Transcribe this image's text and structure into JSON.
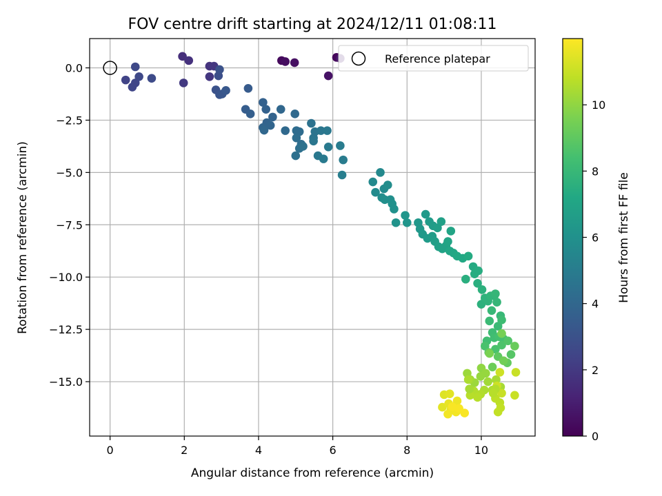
{
  "chart_data": {
    "type": "scatter",
    "title": "FOV centre drift starting at 2024/12/11 01:08:11",
    "xlabel": "Angular distance from reference (arcmin)",
    "ylabel": "Rotation from reference (arcmin)",
    "xlim": [
      -0.55,
      11.45
    ],
    "ylim": [
      -17.6,
      1.4
    ],
    "xticks": [
      "0",
      "2",
      "4",
      "6",
      "8",
      "10"
    ],
    "xtick_values": [
      0,
      2,
      4,
      6,
      8,
      10
    ],
    "yticks": [
      "0.0",
      "−2.5",
      "−5.0",
      "−7.5",
      "−10.0",
      "−12.5",
      "−15.0"
    ],
    "ytick_values": [
      0,
      -2.5,
      -5,
      -7.5,
      -10,
      -12.5,
      -15
    ],
    "grid": true,
    "legend": {
      "label": "Reference platepar",
      "placement": "top-right"
    },
    "reference_point": {
      "x": 0,
      "y": 0
    },
    "colorbar": {
      "label": "Hours from first FF file",
      "colormap": "viridis",
      "range": [
        0,
        12
      ],
      "ticks": [
        "0",
        "2",
        "4",
        "6",
        "8",
        "10"
      ],
      "tick_values": [
        0,
        2,
        4,
        6,
        8,
        10
      ]
    },
    "points": [
      [
        4.62,
        0.35,
        0.3
      ],
      [
        4.72,
        0.3,
        0.4
      ],
      [
        4.97,
        0.25,
        0.5
      ],
      [
        5.88,
        -0.38,
        0.6
      ],
      [
        6.1,
        0.5,
        0.2
      ],
      [
        6.2,
        0.45,
        0.8
      ],
      [
        1.95,
        0.55,
        1.6
      ],
      [
        2.12,
        0.35,
        1.7
      ],
      [
        2.68,
        0.08,
        1.8
      ],
      [
        2.8,
        0.08,
        1.9
      ],
      [
        2.68,
        -0.42,
        1.9
      ],
      [
        1.98,
        -0.72,
        2.0
      ],
      [
        0.42,
        -0.58,
        2.4
      ],
      [
        0.6,
        -0.92,
        2.5
      ],
      [
        0.68,
        -0.72,
        2.5
      ],
      [
        0.68,
        0.05,
        2.6
      ],
      [
        0.78,
        -0.42,
        2.6
      ],
      [
        1.12,
        -0.5,
        2.7
      ],
      [
        2.92,
        -0.38,
        2.9
      ],
      [
        2.95,
        -0.08,
        3.0
      ],
      [
        2.85,
        -1.05,
        3.0
      ],
      [
        2.95,
        -1.28,
        3.1
      ],
      [
        3.02,
        -1.25,
        3.2
      ],
      [
        3.12,
        -1.08,
        3.3
      ],
      [
        3.72,
        -0.98,
        3.4
      ],
      [
        3.65,
        -1.98,
        3.5
      ],
      [
        3.78,
        -2.2,
        3.6
      ],
      [
        4.12,
        -1.65,
        3.7
      ],
      [
        4.2,
        -1.98,
        3.7
      ],
      [
        4.38,
        -2.35,
        3.8
      ],
      [
        4.22,
        -2.62,
        3.8
      ],
      [
        4.12,
        -2.85,
        3.9
      ],
      [
        4.32,
        -2.75,
        3.9
      ],
      [
        4.15,
        -2.98,
        4.0
      ],
      [
        4.6,
        -1.98,
        4.0
      ],
      [
        4.98,
        -2.2,
        4.1
      ],
      [
        4.72,
        -3.0,
        4.1
      ],
      [
        5.02,
        -3.0,
        4.2
      ],
      [
        5.1,
        -3.05,
        4.2
      ],
      [
        5.02,
        -3.35,
        4.3
      ],
      [
        5.15,
        -3.65,
        4.3
      ],
      [
        5.0,
        -4.2,
        4.4
      ],
      [
        5.1,
        -3.85,
        4.4
      ],
      [
        5.2,
        -3.75,
        4.5
      ],
      [
        5.42,
        -2.65,
        4.5
      ],
      [
        5.52,
        -3.05,
        4.6
      ],
      [
        5.48,
        -3.35,
        4.6
      ],
      [
        5.48,
        -3.5,
        4.7
      ],
      [
        5.68,
        -3.0,
        4.7
      ],
      [
        5.85,
        -3.0,
        4.8
      ],
      [
        5.6,
        -4.2,
        4.8
      ],
      [
        5.75,
        -4.35,
        4.9
      ],
      [
        5.88,
        -3.78,
        4.9
      ],
      [
        6.2,
        -3.72,
        5.0
      ],
      [
        6.28,
        -4.4,
        5.0
      ],
      [
        6.25,
        -5.12,
        5.1
      ],
      [
        7.28,
        -5.0,
        5.6
      ],
      [
        7.08,
        -5.45,
        5.6
      ],
      [
        7.15,
        -5.95,
        5.7
      ],
      [
        7.38,
        -5.78,
        5.7
      ],
      [
        7.48,
        -5.6,
        5.8
      ],
      [
        7.32,
        -6.2,
        5.8
      ],
      [
        7.4,
        -6.3,
        5.9
      ],
      [
        7.55,
        -6.3,
        5.9
      ],
      [
        7.6,
        -6.5,
        6.0
      ],
      [
        7.65,
        -6.75,
        6.0
      ],
      [
        7.7,
        -7.4,
        6.1
      ],
      [
        7.95,
        -7.05,
        6.2
      ],
      [
        8.0,
        -7.4,
        6.2
      ],
      [
        8.3,
        -7.4,
        6.3
      ],
      [
        8.35,
        -7.7,
        6.3
      ],
      [
        8.42,
        -7.95,
        6.4
      ],
      [
        8.5,
        -7.0,
        6.4
      ],
      [
        8.6,
        -7.35,
        6.5
      ],
      [
        8.55,
        -8.15,
        6.5
      ],
      [
        8.7,
        -7.55,
        6.6
      ],
      [
        8.68,
        -8.05,
        6.6
      ],
      [
        8.75,
        -8.3,
        6.7
      ],
      [
        8.82,
        -7.65,
        6.7
      ],
      [
        8.92,
        -7.35,
        6.8
      ],
      [
        8.85,
        -8.55,
        6.8
      ],
      [
        8.95,
        -8.65,
        6.9
      ],
      [
        9.05,
        -8.5,
        6.9
      ],
      [
        9.1,
        -8.3,
        7.0
      ],
      [
        9.18,
        -7.8,
        7.0
      ],
      [
        9.15,
        -8.75,
        7.1
      ],
      [
        9.25,
        -8.85,
        7.1
      ],
      [
        9.35,
        -9.0,
        7.2
      ],
      [
        9.5,
        -9.1,
        7.2
      ],
      [
        9.65,
        -9.0,
        7.3
      ],
      [
        9.78,
        -9.5,
        7.3
      ],
      [
        9.82,
        -9.85,
        7.4
      ],
      [
        9.92,
        -9.7,
        7.4
      ],
      [
        9.58,
        -10.1,
        7.5
      ],
      [
        9.9,
        -10.3,
        7.5
      ],
      [
        10.02,
        -10.6,
        7.6
      ],
      [
        10.0,
        -11.3,
        7.6
      ],
      [
        10.1,
        -11.0,
        7.7
      ],
      [
        10.18,
        -11.15,
        7.7
      ],
      [
        10.25,
        -10.9,
        7.8
      ],
      [
        10.35,
        -10.9,
        7.8
      ],
      [
        10.42,
        -11.2,
        7.9
      ],
      [
        10.38,
        -10.8,
        7.9
      ],
      [
        10.28,
        -11.6,
        8.0
      ],
      [
        10.52,
        -11.85,
        8.0
      ],
      [
        10.22,
        -12.1,
        8.1
      ],
      [
        10.45,
        -12.35,
        8.1
      ],
      [
        10.3,
        -12.65,
        8.2
      ],
      [
        10.55,
        -12.05,
        8.2
      ],
      [
        10.35,
        -12.9,
        8.3
      ],
      [
        10.15,
        -13.05,
        8.3
      ],
      [
        10.48,
        -12.85,
        8.4
      ],
      [
        10.6,
        -12.95,
        8.4
      ],
      [
        10.1,
        -13.3,
        8.5
      ],
      [
        10.38,
        -13.45,
        8.5
      ],
      [
        10.55,
        -13.25,
        8.6
      ],
      [
        10.72,
        -13.05,
        8.7
      ],
      [
        10.8,
        -13.7,
        8.8
      ],
      [
        10.2,
        -13.6,
        8.9
      ],
      [
        10.45,
        -13.8,
        9.0
      ],
      [
        10.7,
        -14.1,
        9.1
      ],
      [
        10.9,
        -13.3,
        9.2
      ],
      [
        10.3,
        -14.3,
        9.3
      ],
      [
        10.6,
        -14.0,
        9.4
      ],
      [
        10.55,
        -12.7,
        9.5
      ],
      [
        10.22,
        -13.65,
        9.6
      ],
      [
        10.0,
        -14.35,
        10.0
      ],
      [
        9.98,
        -14.75,
        10.1
      ],
      [
        10.12,
        -14.6,
        10.1
      ],
      [
        9.82,
        -15.05,
        10.2
      ],
      [
        9.62,
        -14.6,
        10.2
      ],
      [
        9.7,
        -14.9,
        10.3
      ],
      [
        10.18,
        -15.0,
        10.3
      ],
      [
        10.4,
        -14.9,
        10.4
      ],
      [
        10.52,
        -15.25,
        10.4
      ],
      [
        10.3,
        -15.4,
        10.5
      ],
      [
        10.08,
        -15.4,
        10.5
      ],
      [
        9.98,
        -15.6,
        10.6
      ],
      [
        9.8,
        -15.45,
        10.6
      ],
      [
        9.7,
        -15.65,
        10.7
      ],
      [
        9.9,
        -15.75,
        10.7
      ],
      [
        10.38,
        -15.8,
        10.8
      ],
      [
        10.5,
        -16.0,
        10.8
      ],
      [
        10.45,
        -16.45,
        10.9
      ],
      [
        10.52,
        -16.25,
        10.9
      ],
      [
        10.55,
        -15.55,
        11.0
      ],
      [
        10.9,
        -15.65,
        11.0
      ],
      [
        10.93,
        -14.55,
        11.0
      ],
      [
        10.5,
        -14.55,
        11.1
      ],
      [
        10.42,
        -15.2,
        11.1
      ],
      [
        9.65,
        -14.9,
        10.5
      ],
      [
        9.68,
        -15.35,
        10.4
      ],
      [
        10.38,
        -15.35,
        10.6
      ],
      [
        10.32,
        -15.55,
        10.7
      ],
      [
        9.0,
        -15.62,
        11.4
      ],
      [
        9.15,
        -15.58,
        11.5
      ],
      [
        8.95,
        -16.22,
        11.5
      ],
      [
        9.12,
        -16.05,
        11.6
      ],
      [
        9.18,
        -16.35,
        11.6
      ],
      [
        9.28,
        -16.2,
        11.7
      ],
      [
        9.35,
        -15.92,
        11.7
      ],
      [
        9.1,
        -16.55,
        11.8
      ],
      [
        9.32,
        -16.45,
        11.8
      ],
      [
        9.55,
        -16.5,
        11.9
      ],
      [
        9.4,
        -16.28,
        11.9
      ],
      [
        9.22,
        -16.2,
        11.9
      ]
    ]
  }
}
